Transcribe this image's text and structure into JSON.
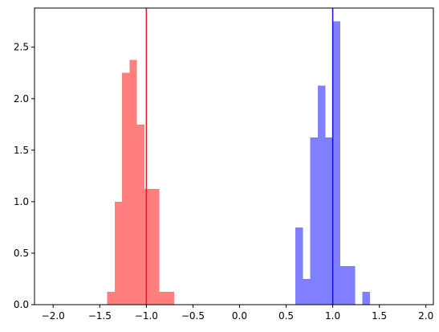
{
  "chart_data": {
    "type": "bar",
    "title": "",
    "xlabel": "",
    "ylabel": "",
    "xlim": [
      -2.2,
      2.08
    ],
    "ylim": [
      0,
      2.88
    ],
    "grid": false,
    "xticks": [
      -2.0,
      -1.5,
      -1.0,
      -0.5,
      0.0,
      0.5,
      1.0,
      1.5,
      2.0
    ],
    "xtick_labels": [
      "−2.0",
      "−1.5",
      "−1.0",
      "−0.5",
      "0.0",
      "0.5",
      "1.0",
      "1.5",
      "2.0"
    ],
    "yticks": [
      0.0,
      0.5,
      1.0,
      1.5,
      2.0,
      2.5
    ],
    "ytick_labels": [
      "0.0",
      "0.5",
      "1.0",
      "1.5",
      "2.0",
      "2.5"
    ],
    "series": [
      {
        "color": "#ff7f7f",
        "bin_width": 0.08,
        "bins": [
          {
            "x0": -1.42,
            "height": 0.125
          },
          {
            "x0": -1.34,
            "height": 1.0
          },
          {
            "x0": -1.26,
            "height": 2.25
          },
          {
            "x0": -1.18,
            "height": 2.375
          },
          {
            "x0": -1.1,
            "height": 1.75
          },
          {
            "x0": -1.02,
            "height": 1.125
          },
          {
            "x0": -0.94,
            "height": 1.125
          },
          {
            "x0": -0.86,
            "height": 0.125
          },
          {
            "x0": -0.78,
            "height": 0.125
          }
        ]
      },
      {
        "color": "#7f7fff",
        "bin_width": 0.08,
        "bins": [
          {
            "x0": 0.6,
            "height": 0.75
          },
          {
            "x0": 0.68,
            "height": 0.25
          },
          {
            "x0": 0.76,
            "height": 1.625
          },
          {
            "x0": 0.84,
            "height": 2.125
          },
          {
            "x0": 0.92,
            "height": 1.625
          },
          {
            "x0": 1.0,
            "height": 2.75
          },
          {
            "x0": 1.08,
            "height": 0.375
          },
          {
            "x0": 1.16,
            "height": 0.375
          },
          {
            "x0": 1.24,
            "height": 0.0
          },
          {
            "x0": 1.32,
            "height": 0.125
          }
        ]
      }
    ],
    "vlines": [
      {
        "x": -1.0,
        "color": "#e02020"
      },
      {
        "x": 1.0,
        "color": "#1010e0"
      }
    ]
  }
}
